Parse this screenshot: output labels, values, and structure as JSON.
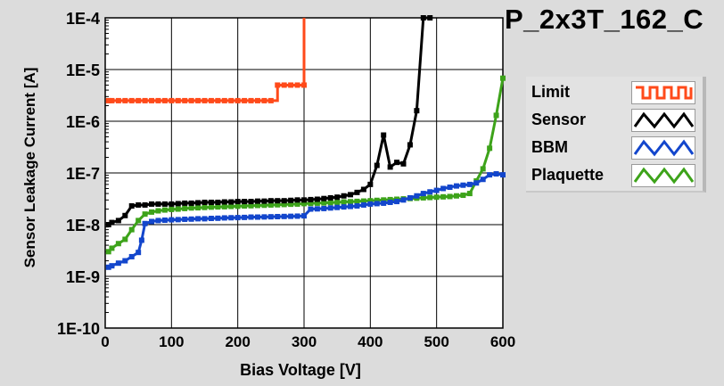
{
  "chart_data": {
    "type": "line",
    "title": "P_2x3T_162_C",
    "xlabel": "Bias Voltage [V]",
    "ylabel": "Sensor Leakage Current [A]",
    "x_scale": "linear",
    "y_scale": "log",
    "xlim": [
      0,
      600
    ],
    "ylim": [
      1e-10,
      0.0001
    ],
    "x_ticks": [
      0,
      100,
      200,
      300,
      400,
      500,
      600
    ],
    "x_tick_labels": [
      "0",
      "100",
      "200",
      "300",
      "400",
      "500",
      "600"
    ],
    "y_ticks": [
      1e-10,
      1e-09,
      1e-08,
      1e-07,
      1e-06,
      1e-05,
      0.0001
    ],
    "y_tick_labels": [
      "1E-10",
      "1E-9",
      "1E-8",
      "1E-7",
      "1E-6",
      "1E-5",
      "1E-4"
    ],
    "grid": true,
    "legend_position": "right",
    "series": [
      {
        "name": "Limit",
        "color": "#ff4a1a",
        "step": true,
        "x": [
          5,
          10,
          20,
          30,
          40,
          50,
          60,
          70,
          80,
          90,
          100,
          110,
          120,
          130,
          140,
          150,
          160,
          170,
          180,
          190,
          200,
          210,
          220,
          230,
          240,
          250,
          260,
          270,
          280,
          290,
          300,
          300
        ],
        "y": [
          2.5e-06,
          2.5e-06,
          2.5e-06,
          2.5e-06,
          2.5e-06,
          2.5e-06,
          2.5e-06,
          2.5e-06,
          2.5e-06,
          2.5e-06,
          2.5e-06,
          2.5e-06,
          2.5e-06,
          2.5e-06,
          2.5e-06,
          2.5e-06,
          2.5e-06,
          2.5e-06,
          2.5e-06,
          2.5e-06,
          2.5e-06,
          2.5e-06,
          2.5e-06,
          2.5e-06,
          2.5e-06,
          2.5e-06,
          5e-06,
          5e-06,
          5e-06,
          5e-06,
          5e-06,
          0.0001
        ]
      },
      {
        "name": "Sensor",
        "color": "#000000",
        "step": false,
        "x": [
          5,
          10,
          20,
          30,
          40,
          50,
          60,
          70,
          80,
          90,
          100,
          110,
          120,
          130,
          140,
          150,
          160,
          170,
          180,
          190,
          200,
          210,
          220,
          230,
          240,
          250,
          260,
          270,
          280,
          290,
          300,
          310,
          320,
          330,
          340,
          350,
          360,
          370,
          380,
          390,
          400,
          410,
          420,
          430,
          440,
          450,
          460,
          470,
          480,
          490
        ],
        "y": [
          1e-08,
          1.1e-08,
          1.2e-08,
          1.5e-08,
          2.3e-08,
          2.4e-08,
          2.4e-08,
          2.5e-08,
          2.5e-08,
          2.5e-08,
          2.5e-08,
          2.55e-08,
          2.6e-08,
          2.6e-08,
          2.65e-08,
          2.7e-08,
          2.7e-08,
          2.7e-08,
          2.75e-08,
          2.75e-08,
          2.8e-08,
          2.8e-08,
          2.8e-08,
          2.85e-08,
          2.85e-08,
          2.9e-08,
          2.9e-08,
          2.9e-08,
          2.95e-08,
          3e-08,
          3e-08,
          3.05e-08,
          3.1e-08,
          3.2e-08,
          3.3e-08,
          3.4e-08,
          3.6e-08,
          3.8e-08,
          4.2e-08,
          4.8e-08,
          6e-08,
          1.4e-07,
          5.4e-07,
          1.3e-07,
          1.6e-07,
          1.5e-07,
          3.5e-07,
          1.6e-06,
          0.0001,
          0.0001
        ]
      },
      {
        "name": "BBM",
        "color": "#1346cc",
        "step": false,
        "x": [
          5,
          10,
          20,
          30,
          40,
          50,
          55,
          60,
          70,
          80,
          90,
          100,
          110,
          120,
          130,
          140,
          150,
          160,
          170,
          180,
          190,
          200,
          210,
          220,
          230,
          240,
          250,
          260,
          270,
          280,
          290,
          300,
          310,
          320,
          330,
          340,
          350,
          360,
          370,
          380,
          390,
          400,
          410,
          420,
          430,
          440,
          450,
          460,
          470,
          480,
          490,
          500,
          510,
          520,
          530,
          540,
          550,
          560,
          570,
          580,
          590,
          600
        ],
        "y": [
          1.5e-09,
          1.6e-09,
          1.8e-09,
          2e-09,
          2.4e-09,
          2.9e-09,
          5e-09,
          1.05e-08,
          1.15e-08,
          1.2e-08,
          1.22e-08,
          1.24e-08,
          1.25e-08,
          1.27e-08,
          1.28e-08,
          1.3e-08,
          1.3e-08,
          1.32e-08,
          1.33e-08,
          1.35e-08,
          1.36e-08,
          1.37e-08,
          1.38e-08,
          1.4e-08,
          1.4e-08,
          1.41e-08,
          1.42e-08,
          1.43e-08,
          1.44e-08,
          1.45e-08,
          1.46e-08,
          1.48e-08,
          2e-08,
          2.02e-08,
          2.05e-08,
          2.1e-08,
          2.15e-08,
          2.2e-08,
          2.25e-08,
          2.3e-08,
          2.4e-08,
          2.5e-08,
          2.55e-08,
          2.6e-08,
          2.7e-08,
          2.8e-08,
          3e-08,
          3.3e-08,
          3.6e-08,
          4e-08,
          4.3e-08,
          4.6e-08,
          5e-08,
          5.3e-08,
          5.6e-08,
          5.8e-08,
          6e-08,
          6.4e-08,
          7.5e-08,
          9.2e-08,
          9.6e-08,
          9.2e-08
        ]
      },
      {
        "name": "Plaquette",
        "color": "#3da31a",
        "step": false,
        "x": [
          5,
          10,
          20,
          30,
          40,
          50,
          60,
          70,
          80,
          90,
          100,
          110,
          120,
          130,
          140,
          150,
          160,
          170,
          180,
          190,
          200,
          210,
          220,
          230,
          240,
          250,
          260,
          270,
          280,
          290,
          300,
          310,
          320,
          330,
          340,
          350,
          360,
          370,
          380,
          390,
          400,
          410,
          420,
          430,
          440,
          450,
          460,
          470,
          480,
          490,
          500,
          510,
          520,
          530,
          540,
          550,
          560,
          570,
          580,
          590,
          600
        ],
        "y": [
          3e-09,
          3.5e-09,
          4.3e-09,
          5.2e-09,
          8e-09,
          1.2e-08,
          1.6e-08,
          1.75e-08,
          1.85e-08,
          1.92e-08,
          1.97e-08,
          2e-08,
          2.05e-08,
          2.1e-08,
          2.12e-08,
          2.15e-08,
          2.18e-08,
          2.2e-08,
          2.22e-08,
          2.25e-08,
          2.27e-08,
          2.3e-08,
          2.32e-08,
          2.35e-08,
          2.37e-08,
          2.4e-08,
          2.42e-08,
          2.45e-08,
          2.48e-08,
          2.5e-08,
          2.55e-08,
          2.58e-08,
          2.6e-08,
          2.63e-08,
          2.67e-08,
          2.7e-08,
          2.75e-08,
          2.78e-08,
          2.82e-08,
          2.86e-08,
          2.9e-08,
          2.95e-08,
          3e-08,
          3.05e-08,
          3.1e-08,
          3.15e-08,
          3.2e-08,
          3.25e-08,
          3.3e-08,
          3.35e-08,
          3.4e-08,
          3.45e-08,
          3.5e-08,
          3.6e-08,
          3.7e-08,
          4e-08,
          7e-08,
          1.2e-07,
          3e-07,
          1.3e-06,
          6.8e-06
        ]
      }
    ]
  }
}
